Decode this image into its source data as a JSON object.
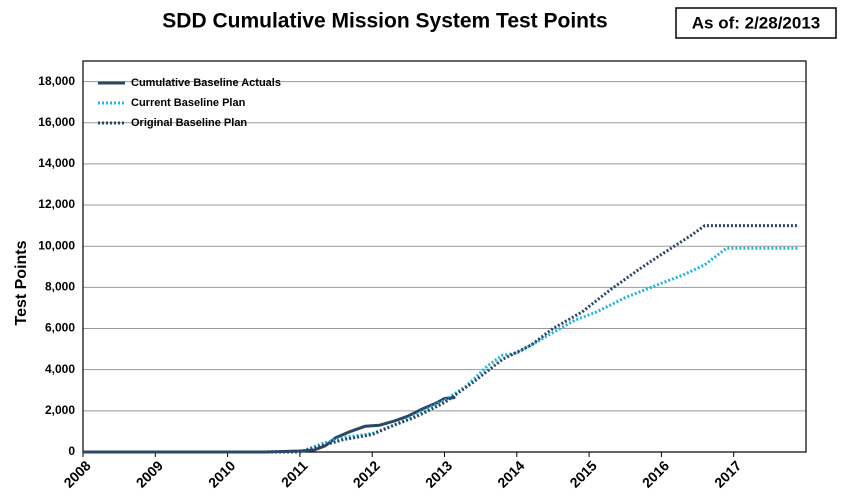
{
  "chart_data": {
    "type": "line",
    "title": "SDD Cumulative Mission System Test Points",
    "annotation": "As of: 2/28/2013",
    "y_label": "Test Points",
    "xlim": [
      2008,
      2018
    ],
    "xticks": [
      2008,
      2009,
      2010,
      2011,
      2012,
      2013,
      2014,
      2015,
      2016,
      2017
    ],
    "ylim": [
      0,
      19000
    ],
    "yticks": [
      0,
      {
        "value": 2000,
        "label": "2,000"
      },
      {
        "value": 4000,
        "label": "4,000"
      },
      {
        "value": 6000,
        "label": "6,000"
      },
      {
        "value": 8000,
        "label": "8,000"
      },
      {
        "value": 10000,
        "label": "10,000"
      },
      {
        "value": 12000,
        "label": "12,000"
      },
      {
        "value": 14000,
        "label": "14,000"
      },
      {
        "value": 16000,
        "label": "16,000"
      },
      {
        "value": 18000,
        "label": "18,000"
      }
    ],
    "grid": true,
    "legend": "top-left",
    "series": [
      {
        "name": "Cumulative Baseline Actuals",
        "color": "#2c4668",
        "style": "solid",
        "x": [
          2008,
          2010.5,
          2010.7,
          2011,
          2011.2,
          2011.35,
          2011.5,
          2011.7,
          2011.9,
          2012.1,
          2012.3,
          2012.5,
          2012.7,
          2012.9,
          2013.0,
          2013.15
        ],
        "values": [
          0,
          0,
          20,
          50,
          100,
          300,
          700,
          1000,
          1250,
          1300,
          1500,
          1750,
          2100,
          2400,
          2600,
          2650
        ]
      },
      {
        "name": "Current Baseline Plan",
        "color": "#22b5e0",
        "style": "dotted",
        "x": [
          2008,
          2011,
          2011.3,
          2011.6,
          2012,
          2012.3,
          2012.6,
          2013,
          2013.3,
          2013.6,
          2013.8,
          2014,
          2014.4,
          2014.8,
          2015.1,
          2015.5,
          2016,
          2016.3,
          2016.6,
          2016.9,
          2017.9
        ],
        "values": [
          0,
          0,
          400,
          700,
          900,
          1300,
          1800,
          2500,
          3200,
          4200,
          4700,
          4800,
          5600,
          6400,
          6800,
          7500,
          8200,
          8600,
          9100,
          9900,
          9900
        ]
      },
      {
        "name": "Original Baseline Plan",
        "color": "#2c4668",
        "style": "dotted",
        "x": [
          2008,
          2011,
          2011.3,
          2011.6,
          2012,
          2012.3,
          2012.6,
          2013,
          2013.4,
          2013.8,
          2014.2,
          2014.5,
          2014.9,
          2015.3,
          2015.7,
          2016,
          2016.4,
          2016.6,
          2017.9
        ],
        "values": [
          0,
          0,
          300,
          600,
          850,
          1300,
          1700,
          2400,
          3400,
          4500,
          5200,
          6000,
          6800,
          7900,
          8900,
          9600,
          10500,
          11000,
          11000
        ]
      }
    ]
  }
}
